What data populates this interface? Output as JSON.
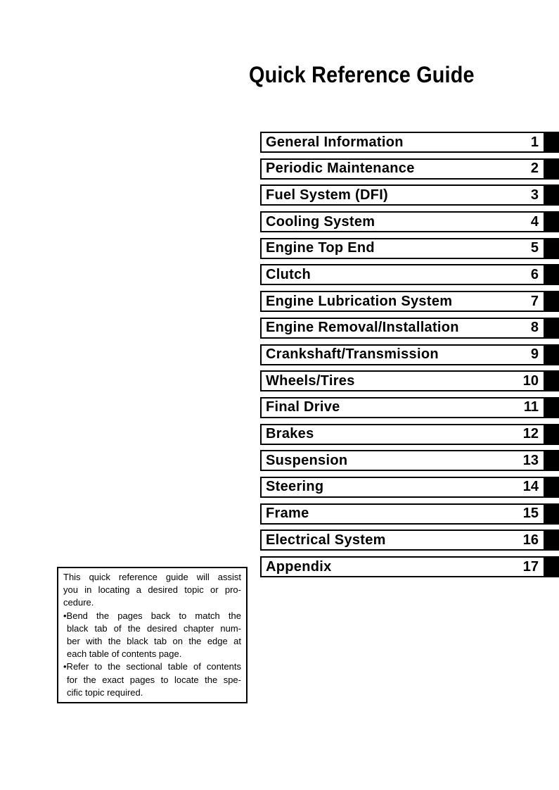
{
  "page": {
    "title": "Quick Reference Guide"
  },
  "chapters": [
    {
      "label": "General Information",
      "number": "1"
    },
    {
      "label": "Periodic Maintenance",
      "number": "2"
    },
    {
      "label": "Fuel System (DFI)",
      "number": "3"
    },
    {
      "label": "Cooling System",
      "number": "4"
    },
    {
      "label": "Engine Top End",
      "number": "5"
    },
    {
      "label": "Clutch",
      "number": "6"
    },
    {
      "label": "Engine Lubrication System",
      "number": "7"
    },
    {
      "label": "Engine Removal/Installation",
      "number": "8"
    },
    {
      "label": "Crankshaft/Transmission",
      "number": "9"
    },
    {
      "label": "Wheels/Tires",
      "number": "10"
    },
    {
      "label": "Final Drive",
      "number": "11"
    },
    {
      "label": "Brakes",
      "number": "12"
    },
    {
      "label": "Suspension",
      "number": "13"
    },
    {
      "label": "Steering",
      "number": "14"
    },
    {
      "label": "Frame",
      "number": "15"
    },
    {
      "label": "Electrical System",
      "number": "16"
    },
    {
      "label": "Appendix",
      "number": "17"
    }
  ],
  "note": {
    "paragraphs": [
      {
        "bullet": false,
        "lines": [
          "This quick reference guide will assist",
          "you in locating a desired topic or pro-",
          "cedure."
        ]
      },
      {
        "bullet": true,
        "lines": [
          "•Bend the pages back to match the",
          "black tab of the desired chapter num-",
          "ber with the black tab on the edge at",
          "each table of contents page."
        ]
      },
      {
        "bullet": true,
        "lines": [
          "•Refer to the sectional table of contents",
          "for the exact pages to locate the spe-",
          "cific topic required."
        ]
      }
    ]
  },
  "colors": {
    "ink": "#000000",
    "paper": "#ffffff"
  }
}
